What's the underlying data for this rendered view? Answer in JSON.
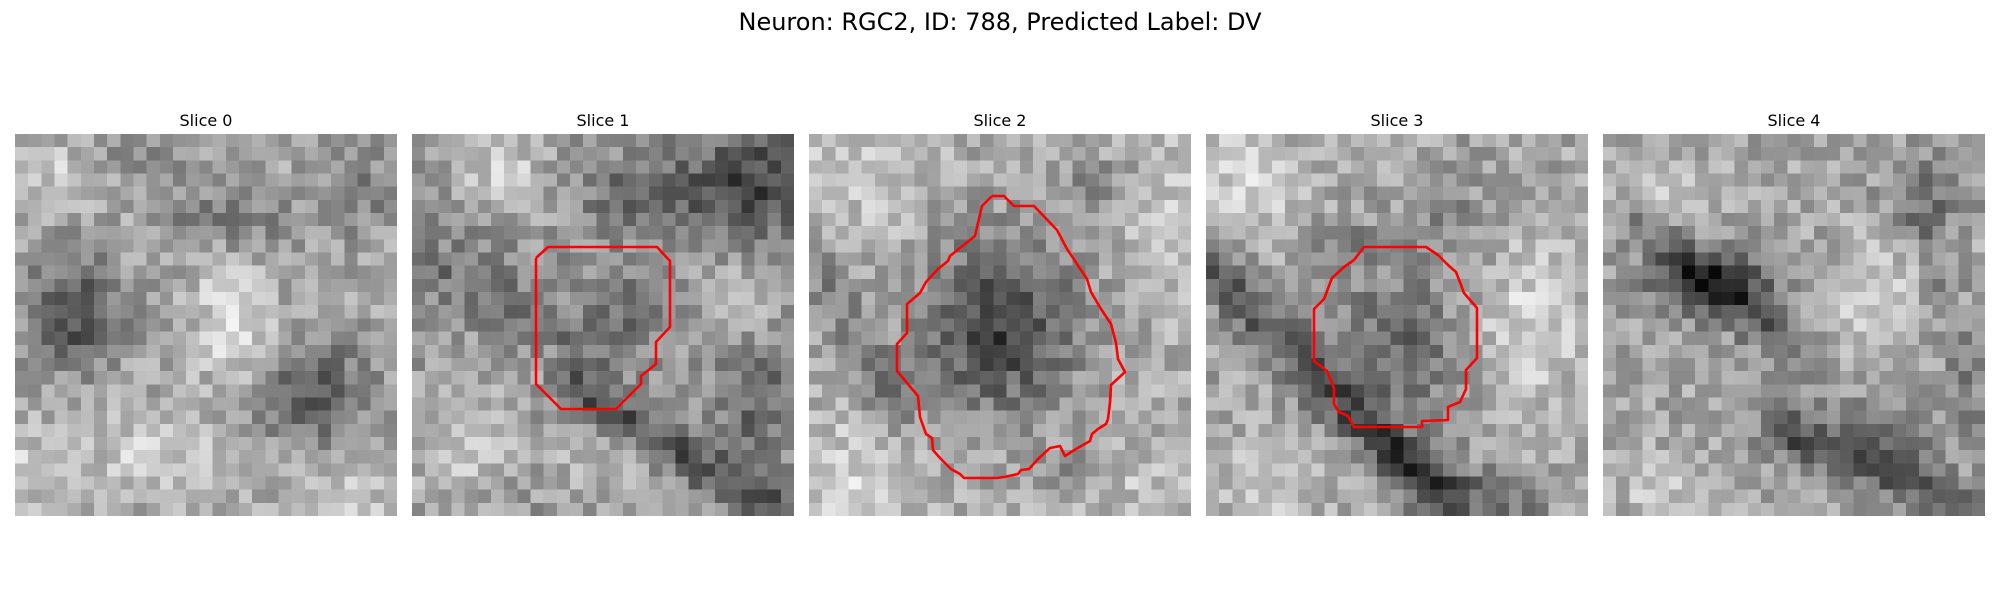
{
  "figure": {
    "title": "Neuron: RGC2, ID: 788, Predicted Label: DV"
  },
  "panels": [
    {
      "label": "Slice 0",
      "has_contour": false
    },
    {
      "label": "Slice 1",
      "has_contour": true
    },
    {
      "label": "Slice 2",
      "has_contour": true
    },
    {
      "label": "Slice 3",
      "has_contour": true
    },
    {
      "label": "Slice 4",
      "has_contour": false
    }
  ],
  "colors": {
    "contour": "#ff0000",
    "background": "#ffffff"
  }
}
